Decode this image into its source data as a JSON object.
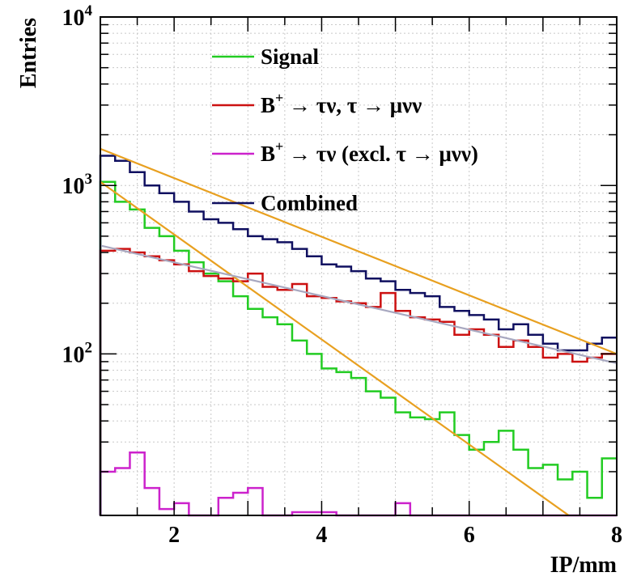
{
  "chart_data": {
    "type": "line",
    "xlabel": "IP/mm",
    "ylabel": "Entries",
    "xlim": [
      1,
      8
    ],
    "ylim": [
      11,
      10000
    ],
    "yscale": "log",
    "grid": true,
    "legend_position": "top-left",
    "x_ticks": [
      2,
      4,
      6,
      8
    ],
    "y_ticks": [
      {
        "value": 100,
        "base": "10",
        "exp": "2"
      },
      {
        "value": 1000,
        "base": "10",
        "exp": "3"
      },
      {
        "value": 10000,
        "base": "10",
        "exp": "4"
      }
    ],
    "bin_edges": [
      1.0,
      1.2,
      1.4,
      1.6,
      1.8,
      2.0,
      2.2,
      2.4,
      2.6,
      2.8,
      3.0,
      3.2,
      3.4,
      3.6,
      3.8,
      4.0,
      4.2,
      4.4,
      4.6,
      4.8,
      5.0,
      5.2,
      5.4,
      5.6,
      5.8,
      6.0,
      6.2,
      6.4,
      6.6,
      6.8,
      7.0,
      7.2,
      7.4,
      7.6,
      7.8,
      8.0
    ],
    "legend": [
      {
        "pre": "Signal",
        "sup": "",
        "post": "",
        "color": "#22cc22"
      },
      {
        "pre": "B",
        "sup": "+",
        "post": " → τν,  τ → μνν",
        "color": "#cc1111"
      },
      {
        "pre": "B",
        "sup": "+",
        "post": " → τν (excl.  τ → μνν)",
        "color": "#cc22cc"
      },
      {
        "pre": "Combined",
        "sup": "",
        "post": "",
        "color": "#101060"
      }
    ],
    "series": [
      {
        "name": "Signal",
        "color": "#22cc22",
        "values": [
          1050,
          800,
          720,
          560,
          500,
          410,
          350,
          300,
          270,
          220,
          185,
          165,
          150,
          120,
          100,
          82,
          78,
          72,
          60,
          55,
          45,
          42,
          41,
          45,
          33,
          27,
          30,
          35,
          27,
          21,
          22,
          18,
          20,
          14,
          24
        ]
      },
      {
        "name": "B+ → τν, τ → μνν",
        "color": "#cc1111",
        "values": [
          410,
          420,
          400,
          380,
          360,
          340,
          310,
          290,
          280,
          270,
          300,
          250,
          240,
          260,
          220,
          215,
          205,
          200,
          190,
          230,
          180,
          165,
          160,
          155,
          130,
          140,
          130,
          110,
          120,
          110,
          95,
          100,
          90,
          95,
          100
        ]
      },
      {
        "name": "B+ → τν (excl. τ → μνν)",
        "color": "#cc22cc",
        "values": [
          20,
          21,
          26,
          16,
          12,
          13,
          11,
          11,
          14,
          15,
          16,
          11,
          11,
          11.5,
          11.5,
          11.5,
          11,
          11,
          11,
          11,
          13,
          11,
          11,
          11,
          11,
          11,
          11,
          11,
          11,
          11,
          11,
          11,
          11,
          11,
          11
        ]
      },
      {
        "name": "Combined",
        "color": "#101060",
        "values": [
          1500,
          1400,
          1200,
          1000,
          900,
          800,
          700,
          630,
          600,
          550,
          500,
          480,
          460,
          420,
          380,
          340,
          330,
          310,
          280,
          270,
          240,
          230,
          220,
          190,
          180,
          170,
          160,
          140,
          150,
          130,
          115,
          105,
          105,
          115,
          125
        ]
      }
    ],
    "fits": [
      {
        "label": "fit-combined",
        "color": "#e8a020",
        "x": [
          1.0,
          8.0
        ],
        "y": [
          1650,
          100
        ],
        "model": "exp"
      },
      {
        "label": "fit-signal",
        "color": "#e8a020",
        "x": [
          1.0,
          7.35
        ],
        "y": [
          1050,
          11
        ],
        "model": "exp"
      },
      {
        "label": "fit-tau-mu",
        "color": "#a8a8c0",
        "x": [
          1.0,
          8.0
        ],
        "y": [
          440,
          88
        ],
        "model": "exp"
      }
    ]
  }
}
